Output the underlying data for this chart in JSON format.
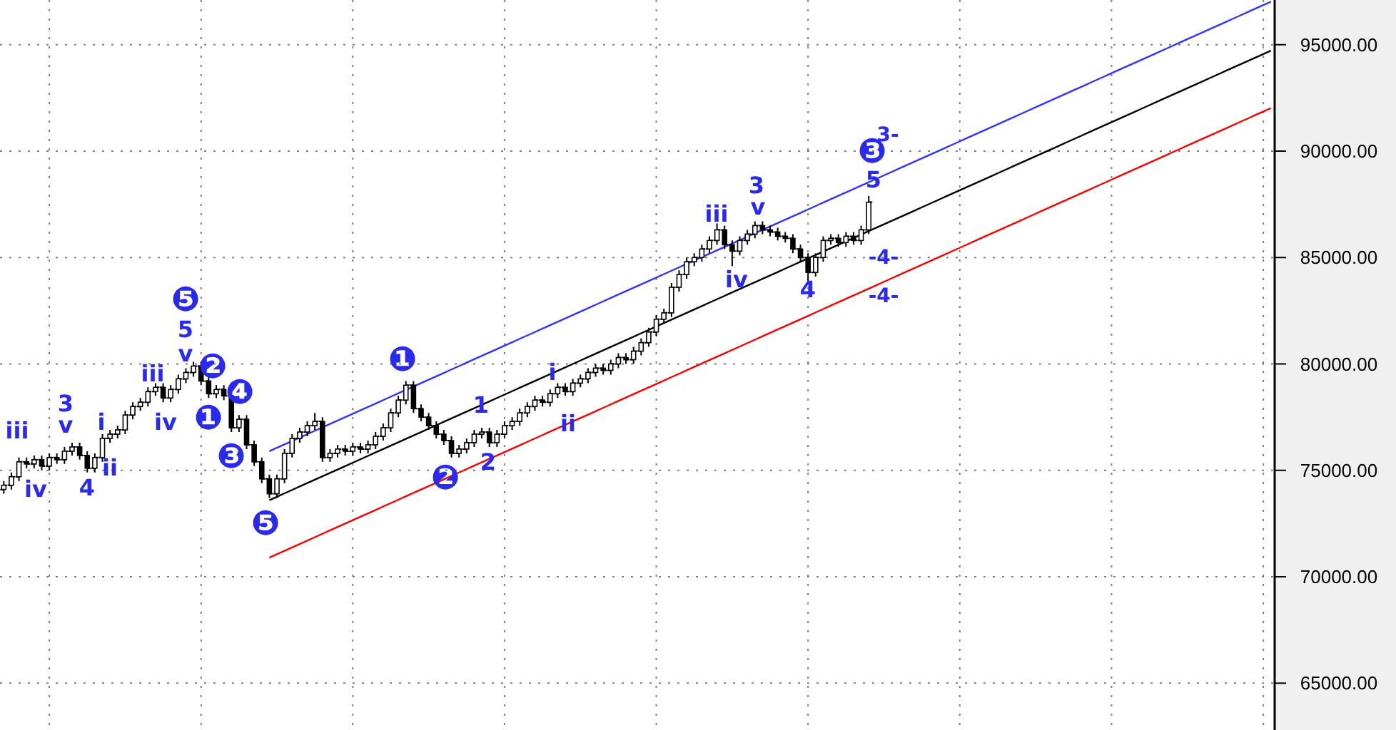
{
  "chart_data": {
    "type": "candlestick",
    "categories": [
      null,
      null,
      null,
      null,
      null,
      null,
      null,
      null,
      null,
      null,
      null,
      null,
      null,
      null,
      null,
      null,
      null,
      null,
      null,
      null,
      null,
      null,
      null,
      null,
      null,
      null,
      null,
      null,
      null,
      null,
      null,
      null,
      null,
      null,
      null,
      null,
      null,
      null,
      null,
      null,
      null,
      null,
      null,
      null,
      null,
      null,
      null,
      null,
      null,
      null,
      null,
      null,
      null,
      null,
      null,
      null,
      null,
      null,
      null,
      null,
      null,
      null,
      null,
      null,
      null,
      null,
      null,
      null,
      null,
      null,
      null,
      null,
      null,
      null,
      null,
      null,
      null,
      null,
      null,
      null,
      null,
      null,
      null,
      null,
      null,
      null,
      null,
      null,
      null,
      null,
      null,
      null,
      null,
      null,
      null,
      null,
      null,
      null,
      null,
      null,
      null,
      null,
      null,
      null,
      null,
      null,
      null,
      null,
      null,
      null,
      null,
      null,
      null,
      null,
      null,
      null,
      null,
      null,
      null,
      null,
      null,
      null,
      null,
      null,
      null,
      null,
      null,
      null,
      null,
      null,
      null,
      null,
      null,
      null,
      null,
      null,
      null,
      null,
      null,
      null,
      null,
      null,
      null,
      null,
      null,
      null,
      null,
      null,
      null,
      null,
      null,
      null,
      null,
      null,
      null,
      null,
      null,
      null,
      null,
      null,
      null,
      null,
      null,
      null,
      null,
      null,
      null,
      null
    ],
    "ohlc": [
      [
        74100,
        74500,
        73900,
        74300
      ],
      [
        74300,
        74900,
        74100,
        74700
      ],
      [
        74700,
        75600,
        74500,
        75400
      ],
      [
        75400,
        75600,
        75100,
        75300
      ],
      [
        75300,
        75700,
        75100,
        75500
      ],
      [
        75500,
        75700,
        75000,
        75200
      ],
      [
        75200,
        75800,
        75000,
        75600
      ],
      [
        75600,
        75800,
        75300,
        75500
      ],
      [
        75500,
        76100,
        75300,
        75900
      ],
      [
        75900,
        76300,
        75700,
        76100
      ],
      [
        76100,
        76300,
        75500,
        75700
      ],
      [
        75700,
        75900,
        74900,
        75100
      ],
      [
        75100,
        75800,
        74900,
        75600
      ],
      [
        75600,
        76700,
        75400,
        76500
      ],
      [
        76500,
        76900,
        76300,
        76700
      ],
      [
        76700,
        77100,
        76500,
        76900
      ],
      [
        76900,
        77800,
        76700,
        77600
      ],
      [
        77600,
        78200,
        77400,
        78000
      ],
      [
        78000,
        78400,
        77800,
        78200
      ],
      [
        78200,
        78900,
        78000,
        78700
      ],
      [
        78700,
        79100,
        78500,
        78900
      ],
      [
        78900,
        79100,
        78200,
        78400
      ],
      [
        78400,
        79000,
        78200,
        78800
      ],
      [
        78800,
        79500,
        78600,
        79300
      ],
      [
        79300,
        79800,
        79100,
        79600
      ],
      [
        79600,
        80100,
        79400,
        79900
      ],
      [
        79900,
        80100,
        79000,
        79200
      ],
      [
        79200,
        79400,
        78400,
        78600
      ],
      [
        78600,
        79000,
        78400,
        78800
      ],
      [
        78800,
        79000,
        78300,
        78500
      ],
      [
        78500,
        78700,
        76800,
        77000
      ],
      [
        77000,
        77600,
        76800,
        77400
      ],
      [
        77400,
        77600,
        76000,
        76200
      ],
      [
        76200,
        76400,
        75200,
        75400
      ],
      [
        75400,
        75600,
        74400,
        74600
      ],
      [
        74600,
        74800,
        73700,
        73900
      ],
      [
        73900,
        74800,
        73700,
        74600
      ],
      [
        74600,
        76000,
        74400,
        75800
      ],
      [
        75800,
        76700,
        75600,
        76500
      ],
      [
        76500,
        77000,
        76300,
        76800
      ],
      [
        76800,
        77300,
        76600,
        77100
      ],
      [
        77100,
        77700,
        76900,
        77300
      ],
      [
        77300,
        77500,
        75400,
        75600
      ],
      [
        75600,
        76000,
        75400,
        75800
      ],
      [
        75800,
        76200,
        75600,
        76000
      ],
      [
        76000,
        76200,
        75700,
        75900
      ],
      [
        75900,
        76300,
        75700,
        76100
      ],
      [
        76100,
        76300,
        75800,
        76000
      ],
      [
        76000,
        76400,
        75800,
        76200
      ],
      [
        76200,
        76800,
        76000,
        76600
      ],
      [
        76600,
        77200,
        76400,
        77000
      ],
      [
        77000,
        77900,
        76800,
        77700
      ],
      [
        77700,
        78500,
        77500,
        78300
      ],
      [
        78300,
        79200,
        78100,
        79000
      ],
      [
        79000,
        79200,
        77700,
        77900
      ],
      [
        77900,
        78100,
        77300,
        77500
      ],
      [
        77500,
        77700,
        76900,
        77100
      ],
      [
        77100,
        77300,
        76500,
        76700
      ],
      [
        76700,
        76900,
        76200,
        76400
      ],
      [
        76400,
        76600,
        75600,
        75800
      ],
      [
        75800,
        76200,
        75600,
        76000
      ],
      [
        76000,
        76500,
        75800,
        76300
      ],
      [
        76300,
        76900,
        76100,
        76700
      ],
      [
        76700,
        77000,
        76500,
        76800
      ],
      [
        76800,
        77000,
        76100,
        76300
      ],
      [
        76300,
        76900,
        76100,
        76700
      ],
      [
        76700,
        77300,
        76500,
        77100
      ],
      [
        77100,
        77500,
        76900,
        77300
      ],
      [
        77300,
        77900,
        77100,
        77700
      ],
      [
        77700,
        78200,
        77500,
        78000
      ],
      [
        78000,
        78500,
        77800,
        78300
      ],
      [
        78300,
        78500,
        78000,
        78200
      ],
      [
        78200,
        78800,
        78000,
        78600
      ],
      [
        78600,
        79100,
        78400,
        78900
      ],
      [
        78900,
        79100,
        78500,
        78700
      ],
      [
        78700,
        79300,
        78500,
        79100
      ],
      [
        79100,
        79500,
        78900,
        79300
      ],
      [
        79300,
        79800,
        79100,
        79600
      ],
      [
        79600,
        80000,
        79400,
        79800
      ],
      [
        79800,
        80000,
        79500,
        79700
      ],
      [
        79700,
        80200,
        79500,
        80000
      ],
      [
        80000,
        80500,
        79800,
        80300
      ],
      [
        80300,
        80500,
        80000,
        80200
      ],
      [
        80200,
        80800,
        80000,
        80600
      ],
      [
        80600,
        81200,
        80400,
        81000
      ],
      [
        81000,
        81700,
        80800,
        81500
      ],
      [
        81500,
        82300,
        81300,
        82100
      ],
      [
        82100,
        82600,
        81900,
        82400
      ],
      [
        82400,
        83800,
        82200,
        83600
      ],
      [
        83600,
        84400,
        83400,
        84200
      ],
      [
        84200,
        85000,
        84000,
        84800
      ],
      [
        84800,
        85200,
        84600,
        85000
      ],
      [
        85000,
        85600,
        84800,
        85400
      ],
      [
        85400,
        86000,
        85200,
        85800
      ],
      [
        85800,
        86600,
        85600,
        86300
      ],
      [
        86300,
        86500,
        85400,
        85600
      ],
      [
        85600,
        85800,
        84600,
        85300
      ],
      [
        85300,
        86000,
        85100,
        85800
      ],
      [
        85800,
        86300,
        85600,
        86100
      ],
      [
        86100,
        86700,
        85900,
        86500
      ],
      [
        86500,
        86700,
        86100,
        86300
      ],
      [
        86300,
        86500,
        86000,
        86200
      ],
      [
        86200,
        86400,
        85800,
        86000
      ],
      [
        86000,
        86200,
        85700,
        85900
      ],
      [
        85900,
        86100,
        85200,
        85400
      ],
      [
        85400,
        85600,
        84800,
        85000
      ],
      [
        85000,
        85200,
        83800,
        84300
      ],
      [
        84300,
        85200,
        84100,
        85000
      ],
      [
        85000,
        86000,
        84800,
        85800
      ],
      [
        85800,
        86100,
        85600,
        85900
      ],
      [
        85900,
        86100,
        85500,
        85700
      ],
      [
        85700,
        86200,
        85500,
        86000
      ],
      [
        86000,
        86200,
        85600,
        85800
      ],
      [
        85800,
        86500,
        85600,
        86300
      ],
      [
        86300,
        87900,
        86100,
        87600
      ],
      null,
      null,
      null,
      null,
      null,
      null,
      null,
      null,
      null,
      null,
      null,
      null,
      null,
      null,
      null,
      null,
      null,
      null,
      null,
      null,
      null,
      null,
      null,
      null,
      null,
      null,
      null,
      null,
      null,
      null,
      null,
      null,
      null,
      null,
      null,
      null,
      null,
      null,
      null,
      null,
      null,
      null,
      null,
      null,
      null,
      null,
      null,
      null,
      null,
      null,
      null,
      null,
      null
    ],
    "series": [
      {
        "type": "line",
        "color": "#3333ff",
        "values": [
          null,
          null,
          null,
          null,
          null,
          null,
          null,
          null,
          null,
          null,
          null,
          null,
          null,
          null,
          null,
          null,
          null,
          null,
          null,
          null,
          null,
          null,
          null,
          null,
          null,
          null,
          null,
          null,
          null,
          null,
          null,
          null,
          null,
          null,
          null,
          75900,
          76060,
          76220,
          76380,
          76540,
          76700,
          76860,
          77020,
          77180,
          77340,
          77500,
          77660,
          77820,
          77980,
          78140,
          78300,
          78460,
          78620,
          78780,
          78940,
          79100,
          79260,
          79420,
          79580,
          79740,
          79900,
          80060,
          80220,
          80380,
          80540,
          80700,
          80860,
          81020,
          81180,
          81340,
          81500,
          81660,
          81820,
          81980,
          82140,
          82300,
          82460,
          82620,
          82780,
          82940,
          83100,
          83260,
          83420,
          83580,
          83740,
          83900,
          84060,
          84220,
          84380,
          84540,
          84700,
          84860,
          85020,
          85180,
          85340,
          85500,
          85660,
          85820,
          85980,
          86140,
          86300,
          86460,
          86620,
          86780,
          86940,
          87100,
          87260,
          87420,
          87580,
          87740,
          87900,
          88060,
          88220,
          88380,
          88540,
          88700,
          88860,
          89020,
          89180,
          89340,
          89500,
          89660,
          89820,
          89980,
          90140,
          90300,
          90460,
          90620,
          90780,
          90940,
          91100,
          91260,
          91420,
          91580,
          91740,
          91900,
          92060,
          92220,
          92380,
          92540,
          92700,
          92860,
          93020,
          93180,
          93340,
          93500,
          93660,
          93820,
          93980,
          94140,
          94300,
          94460,
          94620,
          94780,
          94940,
          95100,
          95260,
          95420,
          95580,
          95740,
          95900,
          96060,
          96220,
          96380,
          96540,
          96700,
          96860,
          97020
        ]
      },
      {
        "type": "line",
        "color": "#000000",
        "values": [
          null,
          null,
          null,
          null,
          null,
          null,
          null,
          null,
          null,
          null,
          null,
          null,
          null,
          null,
          null,
          null,
          null,
          null,
          null,
          null,
          null,
          null,
          null,
          null,
          null,
          null,
          null,
          null,
          null,
          null,
          null,
          null,
          null,
          null,
          null,
          73600,
          73760,
          73920,
          74080,
          74240,
          74400,
          74560,
          74720,
          74880,
          75040,
          75200,
          75360,
          75520,
          75680,
          75840,
          76000,
          76160,
          76320,
          76480,
          76640,
          76800,
          76960,
          77120,
          77280,
          77440,
          77600,
          77760,
          77920,
          78080,
          78240,
          78400,
          78560,
          78720,
          78880,
          79040,
          79200,
          79360,
          79520,
          79680,
          79840,
          80000,
          80160,
          80320,
          80480,
          80640,
          80800,
          80960,
          81120,
          81280,
          81440,
          81600,
          81760,
          81920,
          82080,
          82240,
          82400,
          82560,
          82720,
          82880,
          83040,
          83200,
          83360,
          83520,
          83680,
          83840,
          84000,
          84160,
          84320,
          84480,
          84640,
          84800,
          84960,
          85120,
          85280,
          85440,
          85600,
          85760,
          85920,
          86080,
          86240,
          86400,
          86560,
          86720,
          86880,
          87040,
          87200,
          87360,
          87520,
          87680,
          87840,
          88000,
          88160,
          88320,
          88480,
          88640,
          88800,
          88960,
          89120,
          89280,
          89440,
          89600,
          89760,
          89920,
          90080,
          90240,
          90400,
          90560,
          90720,
          90880,
          91040,
          91200,
          91360,
          91520,
          91680,
          91840,
          92000,
          92160,
          92320,
          92480,
          92640,
          92800,
          92960,
          93120,
          93280,
          93440,
          93600,
          93760,
          93920,
          94080,
          94240,
          94400,
          94560,
          94720
        ]
      },
      {
        "type": "line",
        "color": "#ff0000",
        "values": [
          null,
          null,
          null,
          null,
          null,
          null,
          null,
          null,
          null,
          null,
          null,
          null,
          null,
          null,
          null,
          null,
          null,
          null,
          null,
          null,
          null,
          null,
          null,
          null,
          null,
          null,
          null,
          null,
          null,
          null,
          null,
          null,
          null,
          null,
          null,
          70900,
          71060,
          71220,
          71380,
          71540,
          71700,
          71860,
          72020,
          72180,
          72340,
          72500,
          72660,
          72820,
          72980,
          73140,
          73300,
          73460,
          73620,
          73780,
          73940,
          74100,
          74260,
          74420,
          74580,
          74740,
          74900,
          75060,
          75220,
          75380,
          75540,
          75700,
          75860,
          76020,
          76180,
          76340,
          76500,
          76660,
          76820,
          76980,
          77140,
          77300,
          77460,
          77620,
          77780,
          77940,
          78100,
          78260,
          78420,
          78580,
          78740,
          78900,
          79060,
          79220,
          79380,
          79540,
          79700,
          79860,
          80020,
          80180,
          80340,
          80500,
          80660,
          80820,
          80980,
          81140,
          81300,
          81460,
          81620,
          81780,
          81940,
          82100,
          82260,
          82420,
          82580,
          82740,
          82900,
          83060,
          83220,
          83380,
          83540,
          83700,
          83860,
          84020,
          84180,
          84340,
          84500,
          84660,
          84820,
          84980,
          85140,
          85300,
          85460,
          85620,
          85780,
          85940,
          86100,
          86260,
          86420,
          86580,
          86740,
          86900,
          87060,
          87220,
          87380,
          87540,
          87700,
          87860,
          88020,
          88180,
          88340,
          88500,
          88660,
          88820,
          88980,
          89140,
          89300,
          89460,
          89620,
          89780,
          89940,
          90100,
          90260,
          90420,
          90580,
          90740,
          90900,
          91060,
          91220,
          91380,
          91540,
          91700,
          91860,
          92020
        ]
      }
    ],
    "annotations": [
      "iii",
      "iv",
      "3",
      "v",
      "4",
      "i",
      "ii",
      "iii",
      "iv",
      "❺",
      "5",
      "v",
      "❷",
      "❹",
      "❶",
      "❸",
      "❺",
      "❶",
      "❷",
      "1",
      "2",
      "i",
      "ii",
      "iii",
      "3",
      "v",
      "iv",
      "4",
      "❸",
      "3-",
      "5",
      "-4-",
      "-4-"
    ],
    "ylim": [
      62800,
      97100
    ],
    "yticks": [
      {
        "value": 65000,
        "label": "65000.00"
      },
      {
        "value": 70000,
        "label": "70000.00"
      },
      {
        "value": 75000,
        "label": "75000.00"
      },
      {
        "value": 80000,
        "label": "80000.00"
      },
      {
        "value": 85000,
        "label": "85000.00"
      },
      {
        "value": 90000,
        "label": "90000.00"
      },
      {
        "value": 95000,
        "label": "95000.00"
      }
    ],
    "tick_labels": "y",
    "grid": true
  }
}
